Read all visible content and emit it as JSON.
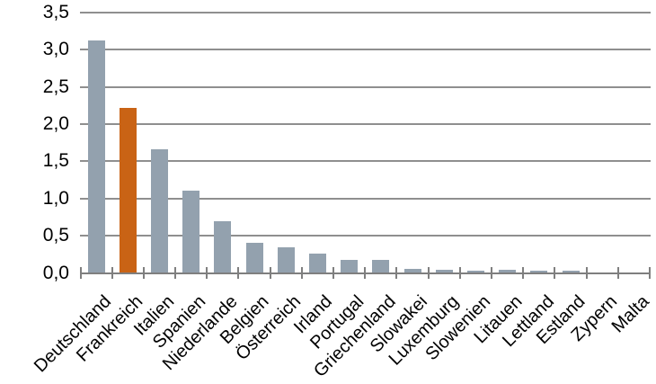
{
  "chart_data": {
    "type": "bar",
    "title": "",
    "categories": [
      "Deutschland",
      "Frankreich",
      "Italien",
      "Spanien",
      "Niederlande",
      "Belgien",
      "Österreich",
      "Irland",
      "Portugal",
      "Griechenland",
      "Slowakei",
      "Luxemburg",
      "Slowenien",
      "Litauen",
      "Lettland",
      "Estland",
      "Zypern",
      "Malta"
    ],
    "values": [
      3.13,
      2.22,
      1.66,
      1.11,
      0.69,
      0.41,
      0.34,
      0.26,
      0.18,
      0.17,
      0.06,
      0.04,
      0.035,
      0.045,
      0.025,
      0.025,
      0.01,
      0.005
    ],
    "highlight_category": "Frankreich",
    "highlight_index": 1,
    "xlabel": "",
    "ylabel": "",
    "ylim": [
      0,
      3.5
    ],
    "y_ticks": [
      {
        "value": 0.0,
        "label": "0,0"
      },
      {
        "value": 0.5,
        "label": "0,5"
      },
      {
        "value": 1.0,
        "label": "1,0"
      },
      {
        "value": 1.5,
        "label": "1,5"
      },
      {
        "value": 2.0,
        "label": "2,0"
      },
      {
        "value": 2.5,
        "label": "2,5"
      },
      {
        "value": 3.0,
        "label": "3,0"
      },
      {
        "value": 3.5,
        "label": "3,5"
      }
    ],
    "x_label_rotation_deg": 45,
    "grid": true,
    "legend": false,
    "colors": {
      "bar": "#93A1AE",
      "highlight": "#C96315",
      "gridline": "#8F8F8F",
      "axis": "#7F7F7F",
      "text": "#000000",
      "background": "#FFFFFF"
    }
  }
}
